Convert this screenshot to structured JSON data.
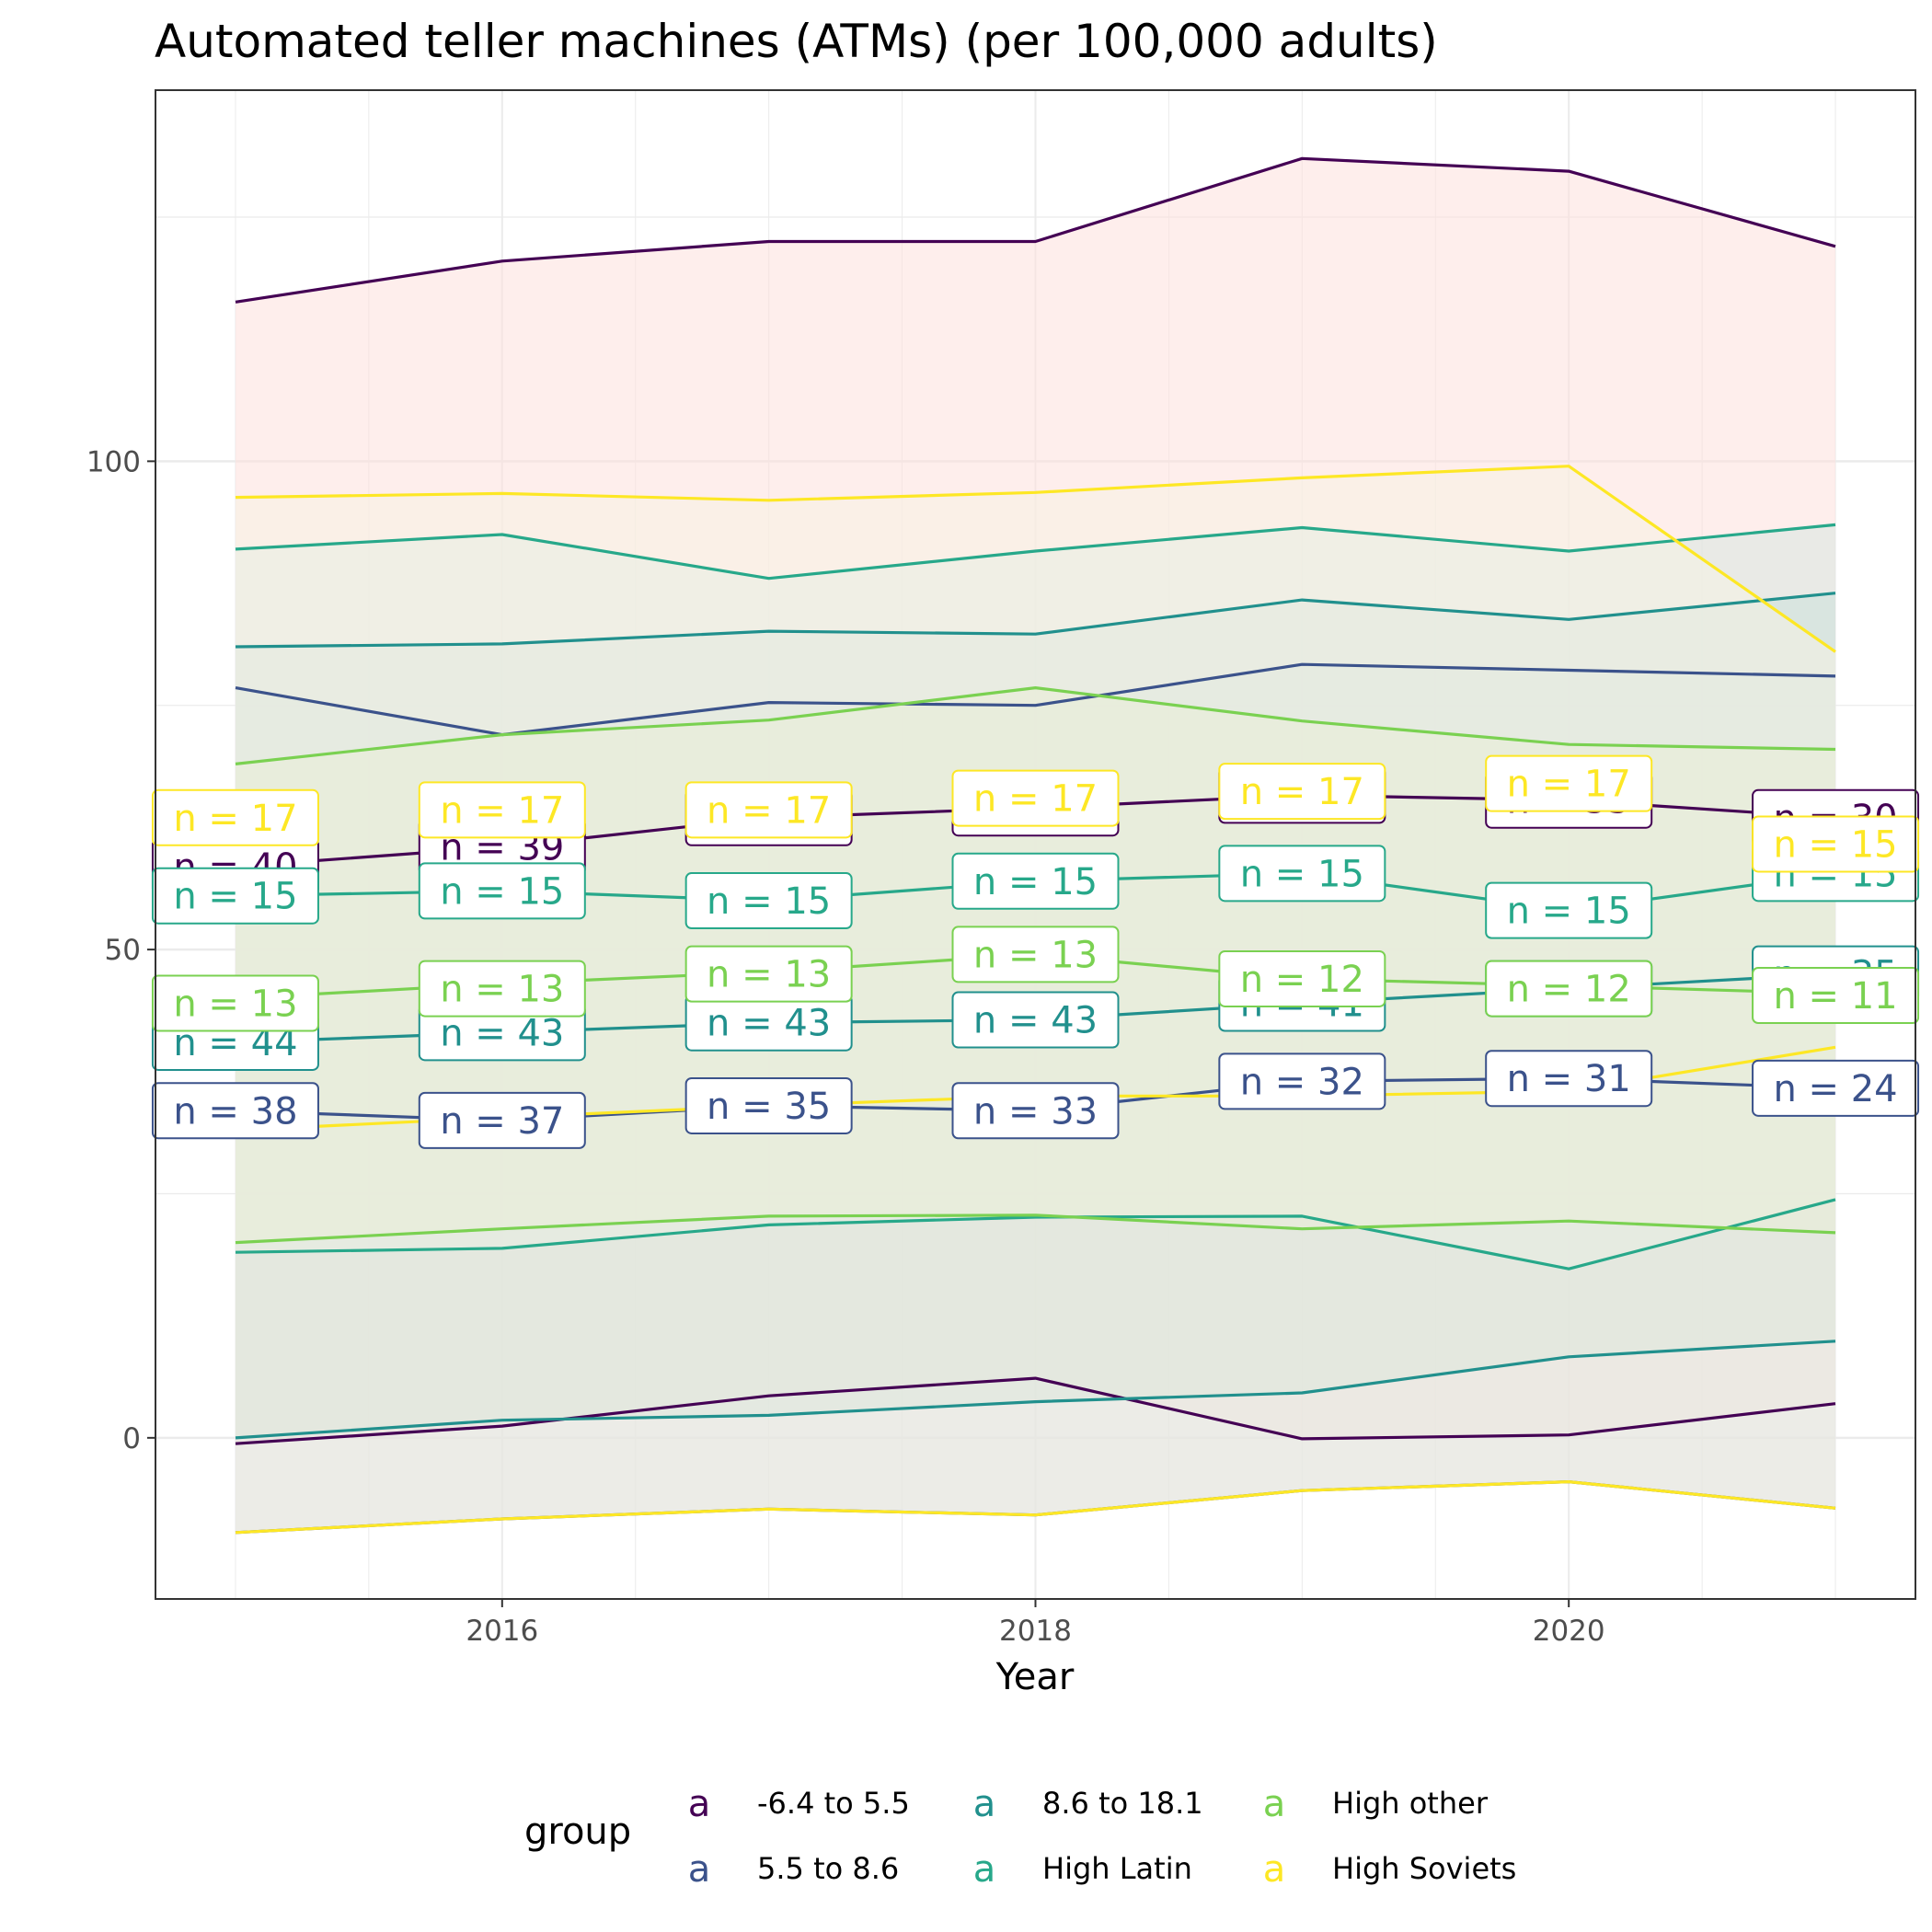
{
  "chart_data": {
    "type": "line",
    "title": "Automated teller machines (ATMs) (per 100,000 adults)",
    "xlabel": "Year",
    "ylabel": "",
    "x_ticks": [
      2016,
      2018,
      2020
    ],
    "y_ticks": [
      0,
      50,
      100
    ],
    "xlim": [
      2014.7,
      2021.3
    ],
    "ylim": [
      -16.5,
      138
    ],
    "grid": true,
    "legend": {
      "title": "group",
      "placement": "bottom",
      "key_symbol": "a"
    },
    "x": [
      2015,
      2016,
      2017,
      2018,
      2019,
      2020,
      2021
    ],
    "series": [
      {
        "name": "-6.4 to 5.5",
        "color": "#440154",
        "fill": "#fde0dd",
        "mean": [
          58.5,
          60.5,
          63.5,
          64.5,
          65.8,
          65.3,
          63.5
        ],
        "upper": [
          116.3,
          120.5,
          122.5,
          122.5,
          131,
          129.7,
          122
        ],
        "lower": [
          -0.6,
          1.2,
          4.3,
          6.1,
          -0.1,
          0.3,
          3.5
        ],
        "n_labels": [
          "n = 40",
          "n = 39",
          "n = 38",
          "n = 38",
          "n = 35",
          "n = 35",
          "n = 30"
        ]
      },
      {
        "name": "5.5 to 8.6",
        "color": "#3b528b",
        "fill": "#c7d0da",
        "mean": [
          33.5,
          32.5,
          34,
          33.5,
          36.5,
          36.8,
          35.8
        ],
        "upper": [
          76.8,
          72,
          75.3,
          75,
          79.2,
          78.6,
          78
        ],
        "lower": [
          -9.7,
          -8.3,
          -7.3,
          -7.9,
          -5.4,
          -4.5,
          -7.2
        ],
        "n_labels": [
          "n = 38",
          "n = 37",
          "n = 35",
          "n = 33",
          "n = 32",
          "n = 31",
          "n = 24"
        ]
      },
      {
        "name": "8.6 to 18.1",
        "color": "#21908d",
        "fill": "#bfd8d4",
        "mean": [
          40.5,
          41.5,
          42.5,
          42.8,
          44.5,
          46,
          47.5
        ],
        "upper": [
          81,
          81.3,
          82.6,
          82.3,
          85.8,
          83.8,
          86.5
        ],
        "lower": [
          0,
          1.8,
          2.3,
          3.7,
          4.6,
          8.3,
          9.9
        ],
        "n_labels": [
          "n = 44",
          "n = 43",
          "n = 43",
          "n = 43",
          "n = 41",
          "n = 41",
          "n = 35"
        ]
      },
      {
        "name": "High Latin",
        "color": "#27a88a",
        "fill": "#d7e8e2",
        "mean": [
          55.5,
          56,
          55,
          57,
          57.8,
          54,
          57.8
        ],
        "upper": [
          91,
          92.5,
          88,
          90.8,
          93.2,
          90.8,
          93.5
        ],
        "lower": [
          19,
          19.4,
          21.8,
          22.6,
          22.7,
          17.3,
          24.4
        ],
        "n_labels": [
          "n = 15",
          "n = 15",
          "n = 15",
          "n = 15",
          "n = 15",
          "n = 15",
          "n = 15"
        ]
      },
      {
        "name": "High other",
        "color": "#7ad151",
        "fill": "#dde9c8",
        "mean": [
          45,
          46.5,
          47.7,
          49.5,
          47,
          46.3,
          45.5
        ],
        "upper": [
          69,
          72,
          73.5,
          76.8,
          73.4,
          71,
          70.5
        ],
        "lower": [
          20,
          21.4,
          22.7,
          22.8,
          21.4,
          22.2,
          21
        ]
      },
      {
        "name": "High Soviets",
        "color": "#fde725",
        "fill": "#f6f3e3",
        "mean": [
          31.5,
          32.8,
          34,
          35,
          35,
          35.5,
          40
        ],
        "upper": [
          96.3,
          96.7,
          96,
          96.8,
          98.3,
          99.5,
          80.5
        ],
        "lower": [
          -9.7,
          -8.3,
          -7.3,
          -7.9,
          -5.4,
          -4.5,
          -7.2
        ]
      }
    ],
    "extra_label_rows": [
      {
        "color": "#7ad151",
        "values": [
          44.5,
          46,
          47.5,
          49.5,
          47,
          46,
          45.3
        ],
        "n_labels": [
          "n = 13",
          "n = 13",
          "n = 13",
          "n = 13",
          "n = 12",
          "n = 12",
          "n = 11"
        ]
      },
      {
        "color": "#fde725",
        "values": [
          63.5,
          64.3,
          64.3,
          65.5,
          66.2,
          67,
          60.8
        ],
        "n_labels": [
          "n = 17",
          "n = 17",
          "n = 17",
          "n = 17",
          "n = 17",
          "n = 17",
          "n = 15"
        ]
      }
    ]
  }
}
